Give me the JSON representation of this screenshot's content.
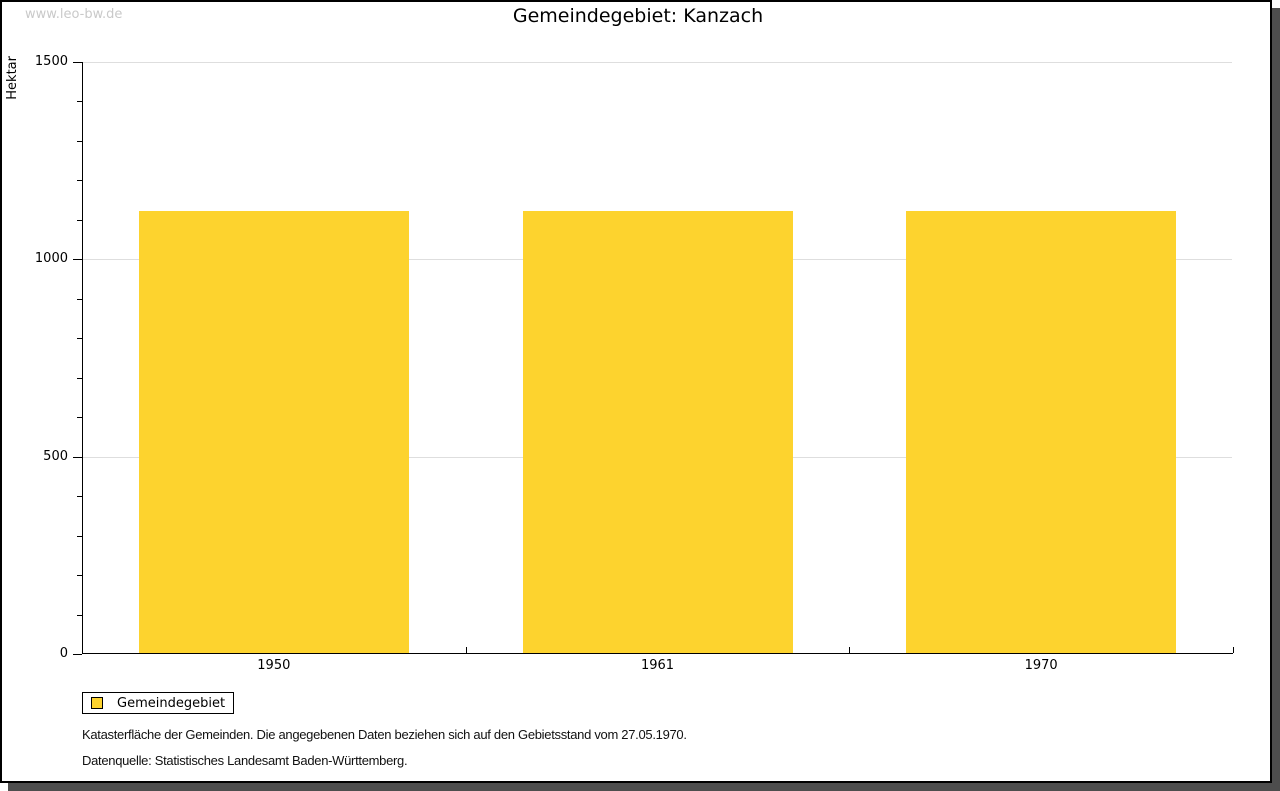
{
  "watermark": "www.leo-bw.de",
  "title": "Gemeindegebiet: Kanzach",
  "chart_data": {
    "type": "bar",
    "title": "Gemeindegebiet: Kanzach",
    "categories": [
      "1950",
      "1961",
      "1970"
    ],
    "series": [
      {
        "name": "Gemeindegebiet",
        "values": [
          1120,
          1120,
          1120
        ]
      }
    ],
    "xlabel": "",
    "ylabel": "Hektar",
    "ylim": [
      0,
      1500
    ],
    "yticks": [
      0,
      500,
      1000,
      1500
    ],
    "ytick_labels": [
      "0",
      "500",
      "1000",
      "1500"
    ],
    "minor_tick_step": 100,
    "grid": "horizontal-at-major-ticks",
    "legend_position": "bottom-left-boxed",
    "bar_color": "#fdd32e"
  },
  "legend": {
    "items": [
      {
        "label": "Gemeindegebiet",
        "color": "#fdd32e"
      }
    ]
  },
  "footnotes": [
    "Katasterfläche der Gemeinden. Die angegebenen Daten beziehen sich auf den Gebietsstand vom 27.05.1970.",
    "Datenquelle: Statistisches Landesamt Baden-Württemberg."
  ],
  "colors": {
    "bar": "#fdd32e",
    "gridline": "#dedede",
    "axis": "#000000",
    "watermark": "#c9c9c9",
    "frame_shadow": "#4d4d4d",
    "background": "#ffffff"
  }
}
